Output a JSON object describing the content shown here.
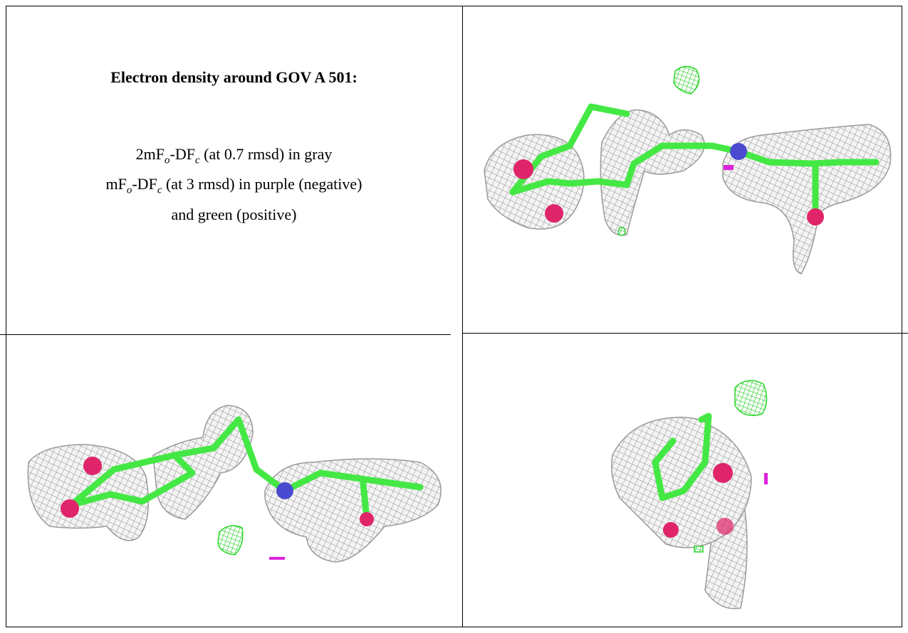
{
  "title": "Electron density around GOV A 501:",
  "legend": [
    [
      {
        "text": "2mF"
      },
      {
        "sub": "o"
      },
      {
        "text": "-DF"
      },
      {
        "sub": "c"
      },
      {
        "text": " (at 0.7 rmsd) in gray"
      }
    ],
    [
      {
        "text": "mF"
      },
      {
        "sub": "o"
      },
      {
        "text": "-DF"
      },
      {
        "sub": "c"
      },
      {
        "text": " (at 3 rmsd) in purple (negative)"
      }
    ],
    [
      {
        "text": "and green (positive)"
      }
    ]
  ]
}
